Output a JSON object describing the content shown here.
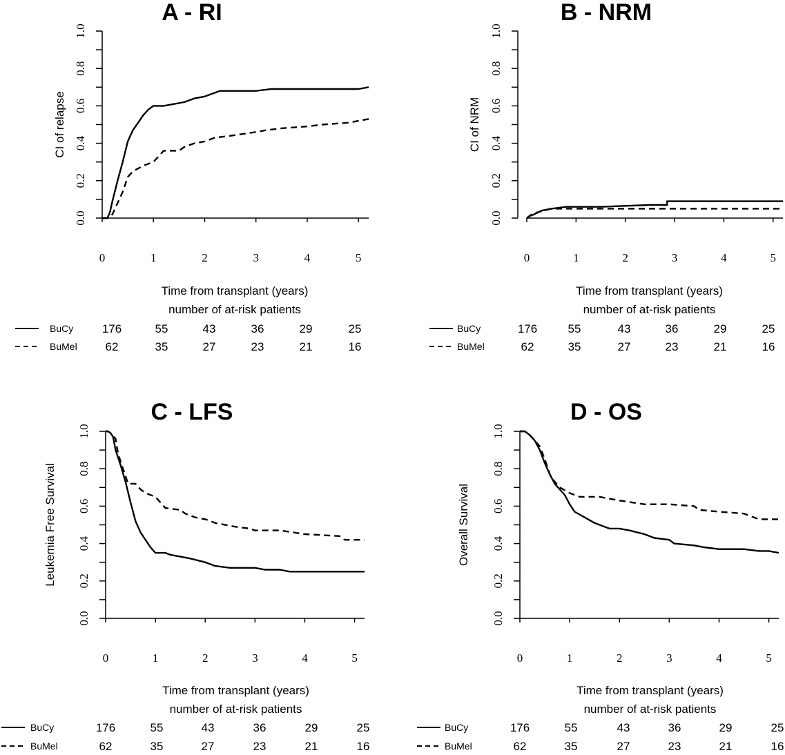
{
  "chart_data": [
    {
      "type": "line",
      "title": "A - RI",
      "xlabel": "Time from transplant (years)",
      "ylabel": "CI of relapse",
      "xlim": [
        0,
        5.2
      ],
      "ylim": [
        0,
        1.0
      ],
      "x_ticks": [
        "0",
        "1",
        "2",
        "3",
        "4",
        "5"
      ],
      "y_ticks": [
        "0.0",
        "0.2",
        "0.4",
        "0.6",
        "0.8",
        "1.0"
      ],
      "grid": false,
      "series": [
        {
          "name": "BuCy",
          "style": "solid",
          "points": [
            [
              0,
              0
            ],
            [
              0.1,
              0
            ],
            [
              0.15,
              0.03
            ],
            [
              0.2,
              0.09
            ],
            [
              0.3,
              0.2
            ],
            [
              0.4,
              0.3
            ],
            [
              0.5,
              0.41
            ],
            [
              0.6,
              0.47
            ],
            [
              0.7,
              0.51
            ],
            [
              0.8,
              0.55
            ],
            [
              0.9,
              0.58
            ],
            [
              1.0,
              0.6
            ],
            [
              1.2,
              0.6
            ],
            [
              1.4,
              0.61
            ],
            [
              1.6,
              0.62
            ],
            [
              1.8,
              0.64
            ],
            [
              2.0,
              0.65
            ],
            [
              2.2,
              0.67
            ],
            [
              2.3,
              0.68
            ],
            [
              3.0,
              0.68
            ],
            [
              3.3,
              0.69
            ],
            [
              4.0,
              0.69
            ],
            [
              5.0,
              0.69
            ],
            [
              5.2,
              0.7
            ]
          ]
        },
        {
          "name": "BuMel",
          "style": "dashed",
          "points": [
            [
              0,
              0
            ],
            [
              0.1,
              0
            ],
            [
              0.2,
              0.02
            ],
            [
              0.3,
              0.08
            ],
            [
              0.4,
              0.14
            ],
            [
              0.5,
              0.22
            ],
            [
              0.6,
              0.25
            ],
            [
              0.8,
              0.28
            ],
            [
              1.0,
              0.3
            ],
            [
              1.1,
              0.33
            ],
            [
              1.2,
              0.36
            ],
            [
              1.5,
              0.36
            ],
            [
              1.6,
              0.38
            ],
            [
              1.8,
              0.4
            ],
            [
              2.0,
              0.41
            ],
            [
              2.2,
              0.43
            ],
            [
              2.5,
              0.44
            ],
            [
              3.0,
              0.46
            ],
            [
              3.2,
              0.47
            ],
            [
              3.5,
              0.48
            ],
            [
              4.0,
              0.49
            ],
            [
              4.3,
              0.5
            ],
            [
              4.8,
              0.51
            ],
            [
              5.0,
              0.52
            ],
            [
              5.2,
              0.53
            ]
          ]
        }
      ],
      "risk_table": {
        "header": "number of at-risk patients",
        "groups": [
          {
            "name": "BuCy",
            "style": "solid",
            "counts": [
              "176",
              "55",
              "43",
              "36",
              "29",
              "25"
            ]
          },
          {
            "name": "BuMel",
            "style": "dashed",
            "counts": [
              "62",
              "35",
              "27",
              "23",
              "21",
              "16"
            ]
          }
        ]
      }
    },
    {
      "type": "line",
      "title": "B - NRM",
      "xlabel": "Time from transplant (years)",
      "ylabel": "CI of NRM",
      "xlim": [
        0,
        5.2
      ],
      "ylim": [
        0,
        1.0
      ],
      "x_ticks": [
        "0",
        "1",
        "2",
        "3",
        "4",
        "5"
      ],
      "y_ticks": [
        "0.0",
        "0.2",
        "0.4",
        "0.6",
        "0.8",
        "1.0"
      ],
      "grid": false,
      "series": [
        {
          "name": "BuCy",
          "style": "solid",
          "points": [
            [
              0,
              0
            ],
            [
              0.05,
              0.01
            ],
            [
              0.15,
              0.02
            ],
            [
              0.3,
              0.04
            ],
            [
              0.5,
              0.05
            ],
            [
              0.8,
              0.06
            ],
            [
              1.5,
              0.06
            ],
            [
              2.5,
              0.07
            ],
            [
              2.85,
              0.07
            ],
            [
              2.85,
              0.09
            ],
            [
              5.2,
              0.09
            ]
          ]
        },
        {
          "name": "BuMel",
          "style": "dashed",
          "points": [
            [
              0,
              0
            ],
            [
              0.1,
              0.02
            ],
            [
              0.2,
              0.03
            ],
            [
              0.5,
              0.05
            ],
            [
              2.85,
              0.05
            ],
            [
              5.2,
              0.05
            ]
          ]
        }
      ],
      "risk_table": {
        "header": "number of at-risk patients",
        "groups": [
          {
            "name": "BuCy",
            "style": "solid",
            "counts": [
              "176",
              "55",
              "43",
              "36",
              "29",
              "25"
            ]
          },
          {
            "name": "BuMel",
            "style": "dashed",
            "counts": [
              "62",
              "35",
              "27",
              "23",
              "21",
              "16"
            ]
          }
        ]
      }
    },
    {
      "type": "line",
      "title": "C - LFS",
      "xlabel": "Time from transplant (years)",
      "ylabel": "Leukemia Free Survival",
      "xlim": [
        0,
        5.2
      ],
      "ylim": [
        0,
        1.0
      ],
      "x_ticks": [
        "0",
        "1",
        "2",
        "3",
        "4",
        "5"
      ],
      "y_ticks": [
        "0.0",
        "0.2",
        "0.4",
        "0.6",
        "0.8",
        "1.0"
      ],
      "grid": false,
      "series": [
        {
          "name": "BuCy",
          "style": "solid",
          "points": [
            [
              0,
              1.0
            ],
            [
              0.05,
              1.0
            ],
            [
              0.1,
              0.99
            ],
            [
              0.15,
              0.97
            ],
            [
              0.2,
              0.9
            ],
            [
              0.3,
              0.82
            ],
            [
              0.4,
              0.73
            ],
            [
              0.5,
              0.62
            ],
            [
              0.6,
              0.52
            ],
            [
              0.7,
              0.46
            ],
            [
              0.8,
              0.42
            ],
            [
              0.9,
              0.38
            ],
            [
              1.0,
              0.35
            ],
            [
              1.2,
              0.35
            ],
            [
              1.3,
              0.34
            ],
            [
              1.5,
              0.33
            ],
            [
              1.7,
              0.32
            ],
            [
              2.0,
              0.3
            ],
            [
              2.2,
              0.28
            ],
            [
              2.5,
              0.27
            ],
            [
              3.0,
              0.27
            ],
            [
              3.2,
              0.26
            ],
            [
              3.5,
              0.26
            ],
            [
              3.7,
              0.25
            ],
            [
              4.0,
              0.25
            ],
            [
              5.2,
              0.25
            ]
          ]
        },
        {
          "name": "BuMel",
          "style": "dashed",
          "points": [
            [
              0,
              1.0
            ],
            [
              0.05,
              1.0
            ],
            [
              0.1,
              0.99
            ],
            [
              0.2,
              0.96
            ],
            [
              0.25,
              0.88
            ],
            [
              0.35,
              0.8
            ],
            [
              0.45,
              0.72
            ],
            [
              0.6,
              0.72
            ],
            [
              0.7,
              0.69
            ],
            [
              0.8,
              0.67
            ],
            [
              1.0,
              0.65
            ],
            [
              1.1,
              0.62
            ],
            [
              1.2,
              0.59
            ],
            [
              1.5,
              0.58
            ],
            [
              1.6,
              0.56
            ],
            [
              1.8,
              0.54
            ],
            [
              2.0,
              0.53
            ],
            [
              2.2,
              0.51
            ],
            [
              2.6,
              0.49
            ],
            [
              2.9,
              0.48
            ],
            [
              3.0,
              0.47
            ],
            [
              3.5,
              0.47
            ],
            [
              4.0,
              0.45
            ],
            [
              4.7,
              0.44
            ],
            [
              4.8,
              0.42
            ],
            [
              5.2,
              0.42
            ]
          ]
        }
      ],
      "risk_table": {
        "header": "number of at-risk patients",
        "groups": [
          {
            "name": "BuCy",
            "style": "solid",
            "counts": [
              "176",
              "55",
              "43",
              "36",
              "29",
              "25"
            ]
          },
          {
            "name": "BuMel",
            "style": "dashed",
            "counts": [
              "62",
              "35",
              "27",
              "23",
              "21",
              "16"
            ]
          }
        ]
      }
    },
    {
      "type": "line",
      "title": "D - OS",
      "xlabel": "Time from transplant (years)",
      "ylabel": "Overall Survival",
      "xlim": [
        0,
        5.2
      ],
      "ylim": [
        0,
        1.0
      ],
      "x_ticks": [
        "0",
        "1",
        "2",
        "3",
        "4",
        "5"
      ],
      "y_ticks": [
        "0.0",
        "0.2",
        "0.4",
        "0.6",
        "0.8",
        "1.0"
      ],
      "grid": false,
      "series": [
        {
          "name": "BuCy",
          "style": "solid",
          "points": [
            [
              0,
              1.0
            ],
            [
              0.1,
              1.0
            ],
            [
              0.2,
              0.98
            ],
            [
              0.3,
              0.95
            ],
            [
              0.4,
              0.9
            ],
            [
              0.5,
              0.83
            ],
            [
              0.6,
              0.77
            ],
            [
              0.7,
              0.72
            ],
            [
              0.8,
              0.69
            ],
            [
              0.9,
              0.66
            ],
            [
              1.0,
              0.61
            ],
            [
              1.1,
              0.57
            ],
            [
              1.3,
              0.54
            ],
            [
              1.5,
              0.51
            ],
            [
              1.7,
              0.49
            ],
            [
              1.8,
              0.48
            ],
            [
              2.0,
              0.48
            ],
            [
              2.2,
              0.47
            ],
            [
              2.5,
              0.45
            ],
            [
              2.7,
              0.43
            ],
            [
              3.0,
              0.42
            ],
            [
              3.1,
              0.4
            ],
            [
              3.5,
              0.39
            ],
            [
              3.7,
              0.38
            ],
            [
              4.0,
              0.37
            ],
            [
              4.5,
              0.37
            ],
            [
              4.8,
              0.36
            ],
            [
              5.0,
              0.36
            ],
            [
              5.2,
              0.35
            ]
          ]
        },
        {
          "name": "BuMel",
          "style": "dashed",
          "points": [
            [
              0,
              1.0
            ],
            [
              0.1,
              1.0
            ],
            [
              0.2,
              0.98
            ],
            [
              0.3,
              0.95
            ],
            [
              0.4,
              0.92
            ],
            [
              0.5,
              0.85
            ],
            [
              0.6,
              0.77
            ],
            [
              0.7,
              0.73
            ],
            [
              0.8,
              0.7
            ],
            [
              1.0,
              0.67
            ],
            [
              1.2,
              0.65
            ],
            [
              1.6,
              0.65
            ],
            [
              2.0,
              0.63
            ],
            [
              2.5,
              0.61
            ],
            [
              3.0,
              0.61
            ],
            [
              3.5,
              0.6
            ],
            [
              3.6,
              0.58
            ],
            [
              4.0,
              0.57
            ],
            [
              4.5,
              0.56
            ],
            [
              4.8,
              0.53
            ],
            [
              5.2,
              0.53
            ]
          ]
        }
      ],
      "risk_table": {
        "header": "number of at-risk patients",
        "groups": [
          {
            "name": "BuCy",
            "style": "solid",
            "counts": [
              "176",
              "55",
              "43",
              "36",
              "29",
              "25"
            ]
          },
          {
            "name": "BuMel",
            "style": "dashed",
            "counts": [
              "62",
              "35",
              "27",
              "23",
              "21",
              "16"
            ]
          }
        ]
      }
    }
  ]
}
